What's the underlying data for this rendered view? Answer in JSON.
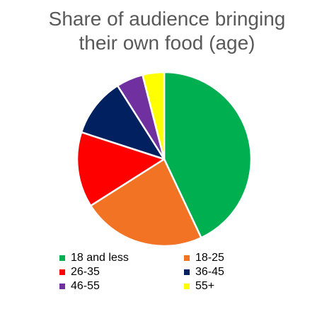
{
  "chart_data": {
    "type": "pie",
    "title": "Share of audience bringing their own food (age)",
    "title_lines": [
      "Share of audience bringing",
      "their own food (age)"
    ],
    "slices": [
      {
        "label": "18 and less",
        "value": 43,
        "color": "#00b050"
      },
      {
        "label": "18-25",
        "value": 23,
        "color": "#f27324"
      },
      {
        "label": "26-35",
        "value": 14,
        "color": "#ff0000"
      },
      {
        "label": "36-45",
        "value": 11,
        "color": "#002060"
      },
      {
        "label": "46-55",
        "value": 5,
        "color": "#7030a0"
      },
      {
        "label": "55+",
        "value": 4,
        "color": "#ffff00"
      }
    ],
    "legend_position": "bottom",
    "start_angle": "top",
    "direction": "clockwise"
  }
}
